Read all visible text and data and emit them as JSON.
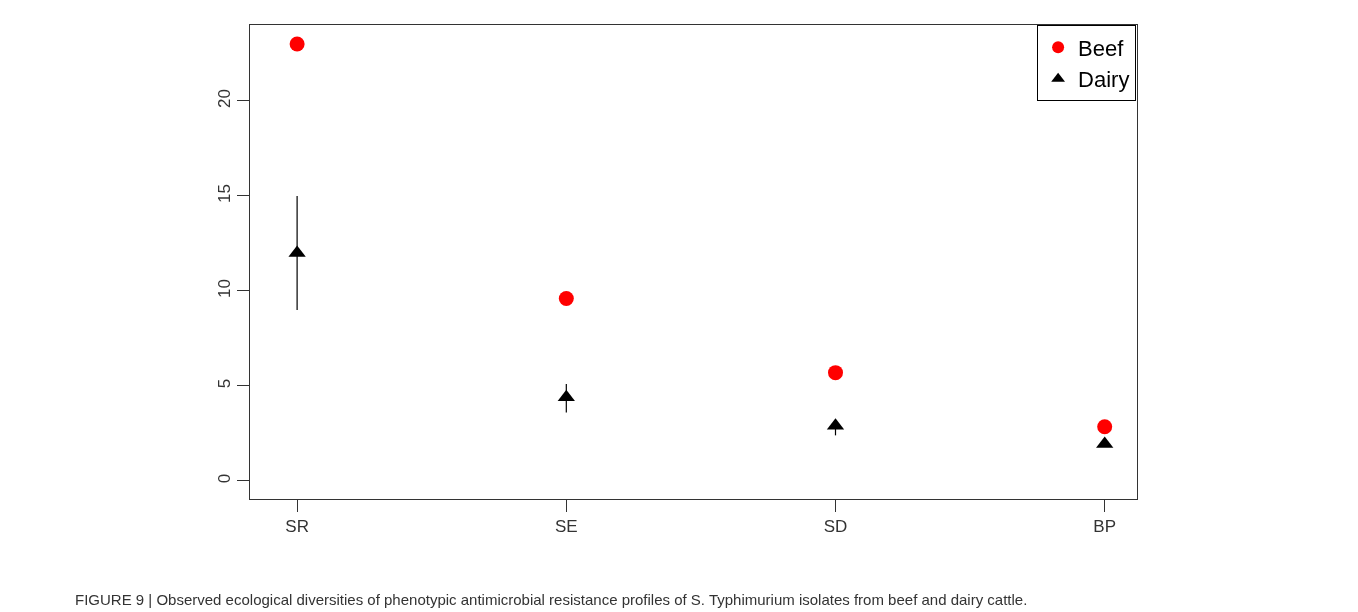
{
  "chart_data": {
    "type": "scatter",
    "categories": [
      "SR",
      "SE",
      "SD",
      "BP"
    ],
    "series": [
      {
        "name": "Beef",
        "color": "#ff0000",
        "marker": "circle",
        "values": [
          23,
          9.6,
          5.7,
          2.85
        ]
      },
      {
        "name": "Dairy",
        "color": "#000000",
        "marker": "triangle",
        "values": [
          12,
          4.4,
          2.9,
          1.95
        ],
        "errors": [
          [
            9,
            15
          ],
          [
            3.6,
            5.1
          ],
          [
            2.4,
            3.2
          ],
          null
        ]
      }
    ],
    "ylim": [
      -0.95,
      24
    ],
    "yticks": [
      0,
      5,
      10,
      15,
      20
    ],
    "legend": "top right",
    "annotations": [
      "FIGURE 9 | Observed ecological diversities of phenotypic antimicrobial resistance profiles of S. Typhimurium isolates from beef and dairy cattle."
    ]
  }
}
